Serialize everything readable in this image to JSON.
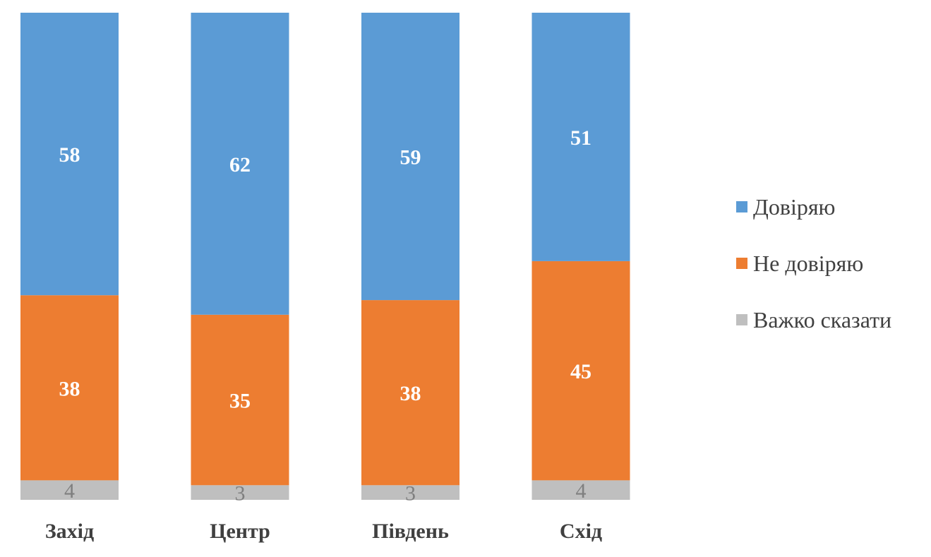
{
  "chart_data": {
    "type": "bar",
    "stacked": true,
    "categories": [
      "Захід",
      "Центр",
      "Південь",
      "Схід"
    ],
    "series": [
      {
        "name": "Важко сказати",
        "values": [
          4,
          3,
          3,
          4
        ],
        "color": "#bfbfbf",
        "label_color": "#7f7f7f"
      },
      {
        "name": "Не довіряю",
        "values": [
          38,
          35,
          38,
          45
        ],
        "color": "#ed7d31",
        "label_color": "#ffffff"
      },
      {
        "name": "Довіряю",
        "values": [
          58,
          62,
          59,
          51
        ],
        "color": "#5b9bd5",
        "label_color": "#ffffff"
      }
    ],
    "legend": {
      "position": "right",
      "order": [
        "Довіряю",
        "Не довіряю",
        "Важко сказати"
      ]
    },
    "ylim": [
      0,
      100
    ],
    "grid": false
  }
}
